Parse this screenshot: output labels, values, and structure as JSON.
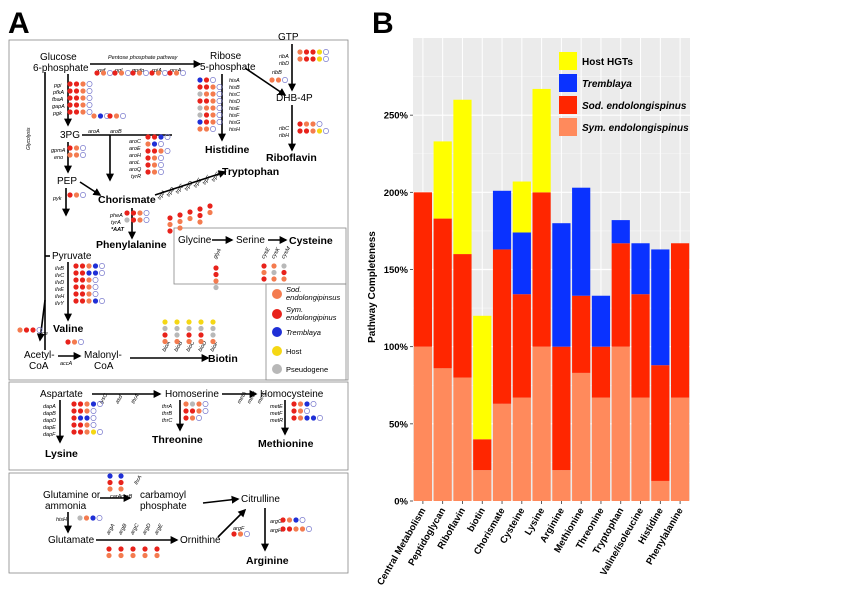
{
  "panel_labels": {
    "a": "A",
    "b": "B"
  },
  "colors": {
    "sod": "#f47b4f",
    "sym": "#e8221b",
    "tremblaya": "#1f2fd6",
    "host": "#f5d714",
    "pseudo": "#b8b8b8",
    "empty": "#7777cc",
    "hosthgt_bar": "#ffff00",
    "tremblaya_bar": "#0a32ff",
    "sod_bar": "#ff2600",
    "sym_bar": "#ff8a5c"
  },
  "diagram": {
    "glucose": [
      "Glucose",
      "6-phosphate"
    ],
    "ppp": "Pentose phosphate pathway",
    "ppp_genes": [
      "xwf",
      "pgl",
      "gpdp",
      "rpiA",
      "prsA"
    ],
    "ribose": [
      "Ribose",
      "5-phosphate"
    ],
    "rib_genes_his": [
      "hisA",
      "hisB",
      "hisC",
      "hisD",
      "hisE",
      "hisF",
      "hisG",
      "hisH"
    ],
    "histidine": "Histidine",
    "gtp": "GTP",
    "ribB": "ribB",
    "ribA": "ribA",
    "ribD": "ribD",
    "dhb": "DHB-4P",
    "ribC": "ribC",
    "ribH": "ribH",
    "riboflavin": "Riboflavin",
    "glyc_genes": [
      "pgi",
      "pfkA",
      "fbaA",
      "gapA",
      "pgk"
    ],
    "glycolysis": "Glycolysis",
    "pg3": "3PG",
    "aroA": "aroA",
    "aroB": "aroB",
    "gpm_genes": [
      "gpmA",
      "eno"
    ],
    "pep": "PEP",
    "pyk": "pyk",
    "aro_genes": [
      "aroC",
      "aroE",
      "aroH",
      "aroL",
      "aroQ",
      "tyrR"
    ],
    "chorismate": "Chorismate",
    "trp_genes": [
      "trpA",
      "trpB",
      "trpC",
      "trpD",
      "trpE",
      "trpF",
      "trpG"
    ],
    "tryptophan": "Tryptophan",
    "phe_genes": [
      "pheA",
      "tyrA",
      "*AAT"
    ],
    "phenylalanine": "Phenylalanine",
    "pyruvate": "Pyruvate",
    "ilv_genes": [
      "ilvB",
      "ilvC",
      "ilvD",
      "ilvE",
      "ilvH",
      "ilvY"
    ],
    "valine": "Valine",
    "ace": "ace",
    "acetyl": [
      "Acetyl-",
      "CoA"
    ],
    "accA": "accA",
    "malonyl": [
      "Malonyl-",
      "CoA"
    ],
    "bio_genes": [
      "bioA",
      "bioB",
      "bioC",
      "bioD",
      "bioF"
    ],
    "biotin": "Biotin",
    "glycine": "Glycine",
    "serine": "Serine",
    "cysteine": "Cysteine",
    "glyA": "glyA",
    "cys_genes": [
      "cysE",
      "cysK",
      "cysM"
    ],
    "legend": [
      "Sod.",
      "endolongipinsus",
      "Sym.",
      "endolongipinus",
      "Tremblaya",
      "Host",
      "Pseudogene"
    ],
    "aspartate": "Aspartate",
    "homoserine": "Homoserine",
    "homocysteine": "Homocysteine",
    "lys_mid_genes": [
      "lysC",
      "asd",
      "thrA"
    ],
    "dap_genes": [
      "dapA",
      "dapB",
      "dapD",
      "dapE",
      "dapF"
    ],
    "lysine": "Lysine",
    "thr_genes": [
      "thrA",
      "thrB",
      "thrC"
    ],
    "threonine": "Threonine",
    "met_mid_genes": [
      "metA",
      "metB",
      "metC"
    ],
    "met_genes": [
      "metE",
      "metF",
      "metR"
    ],
    "methionine": "Methionine",
    "glutamine": [
      "Glutamine or",
      "ammonia"
    ],
    "car_genes": [
      "carA",
      "carB",
      "lhrA"
    ],
    "carbamoyl": [
      "carbamoyl",
      "phosphate"
    ],
    "citrulline": "Citrulline",
    "hisH": "hisH",
    "glutamate": "Glutamate",
    "arg_mid_genes": [
      "argA",
      "argB",
      "argC",
      "argD",
      "argE"
    ],
    "ornithine": "Ornithine",
    "argF": "argF",
    "arg_genes": [
      "argG",
      "argH"
    ],
    "arginine": "Arginine"
  },
  "chart_data": {
    "type": "bar",
    "stacked": true,
    "categories": [
      "Central Metabolism",
      "Peptidoglycan",
      "Riboflavin",
      "biotin",
      "Chorismate",
      "Cysteine",
      "Lysine",
      "Arginine",
      "Methionine",
      "Threonine",
      "Tryptophan",
      "Valine/isoleucine",
      "Histidine",
      "Phenylalanine"
    ],
    "series": [
      {
        "name": "Sym. endolongispinus",
        "values": [
          100,
          86,
          80,
          20,
          63,
          67,
          100,
          20,
          83,
          67,
          100,
          67,
          13,
          67
        ]
      },
      {
        "name": "Sod. endolongispinus",
        "values": [
          100,
          97,
          80,
          20,
          100,
          67,
          100,
          80,
          50,
          33,
          67,
          67,
          75,
          100
        ]
      },
      {
        "name": "Tremblaya",
        "values": [
          0,
          0,
          0,
          0,
          38,
          40,
          0,
          80,
          70,
          33,
          15,
          33,
          75,
          0
        ]
      },
      {
        "name": "Host HGTs",
        "values": [
          0,
          50,
          100,
          80,
          0,
          33,
          67,
          0,
          0,
          0,
          0,
          0,
          0,
          0
        ]
      }
    ],
    "ylabel": "Pathway Completeness",
    "yticks": [
      "0%",
      "50%",
      "100%",
      "150%",
      "200%",
      "250%"
    ],
    "ylim": [
      0,
      300
    ],
    "grid": true,
    "legend_position": "top-right"
  }
}
